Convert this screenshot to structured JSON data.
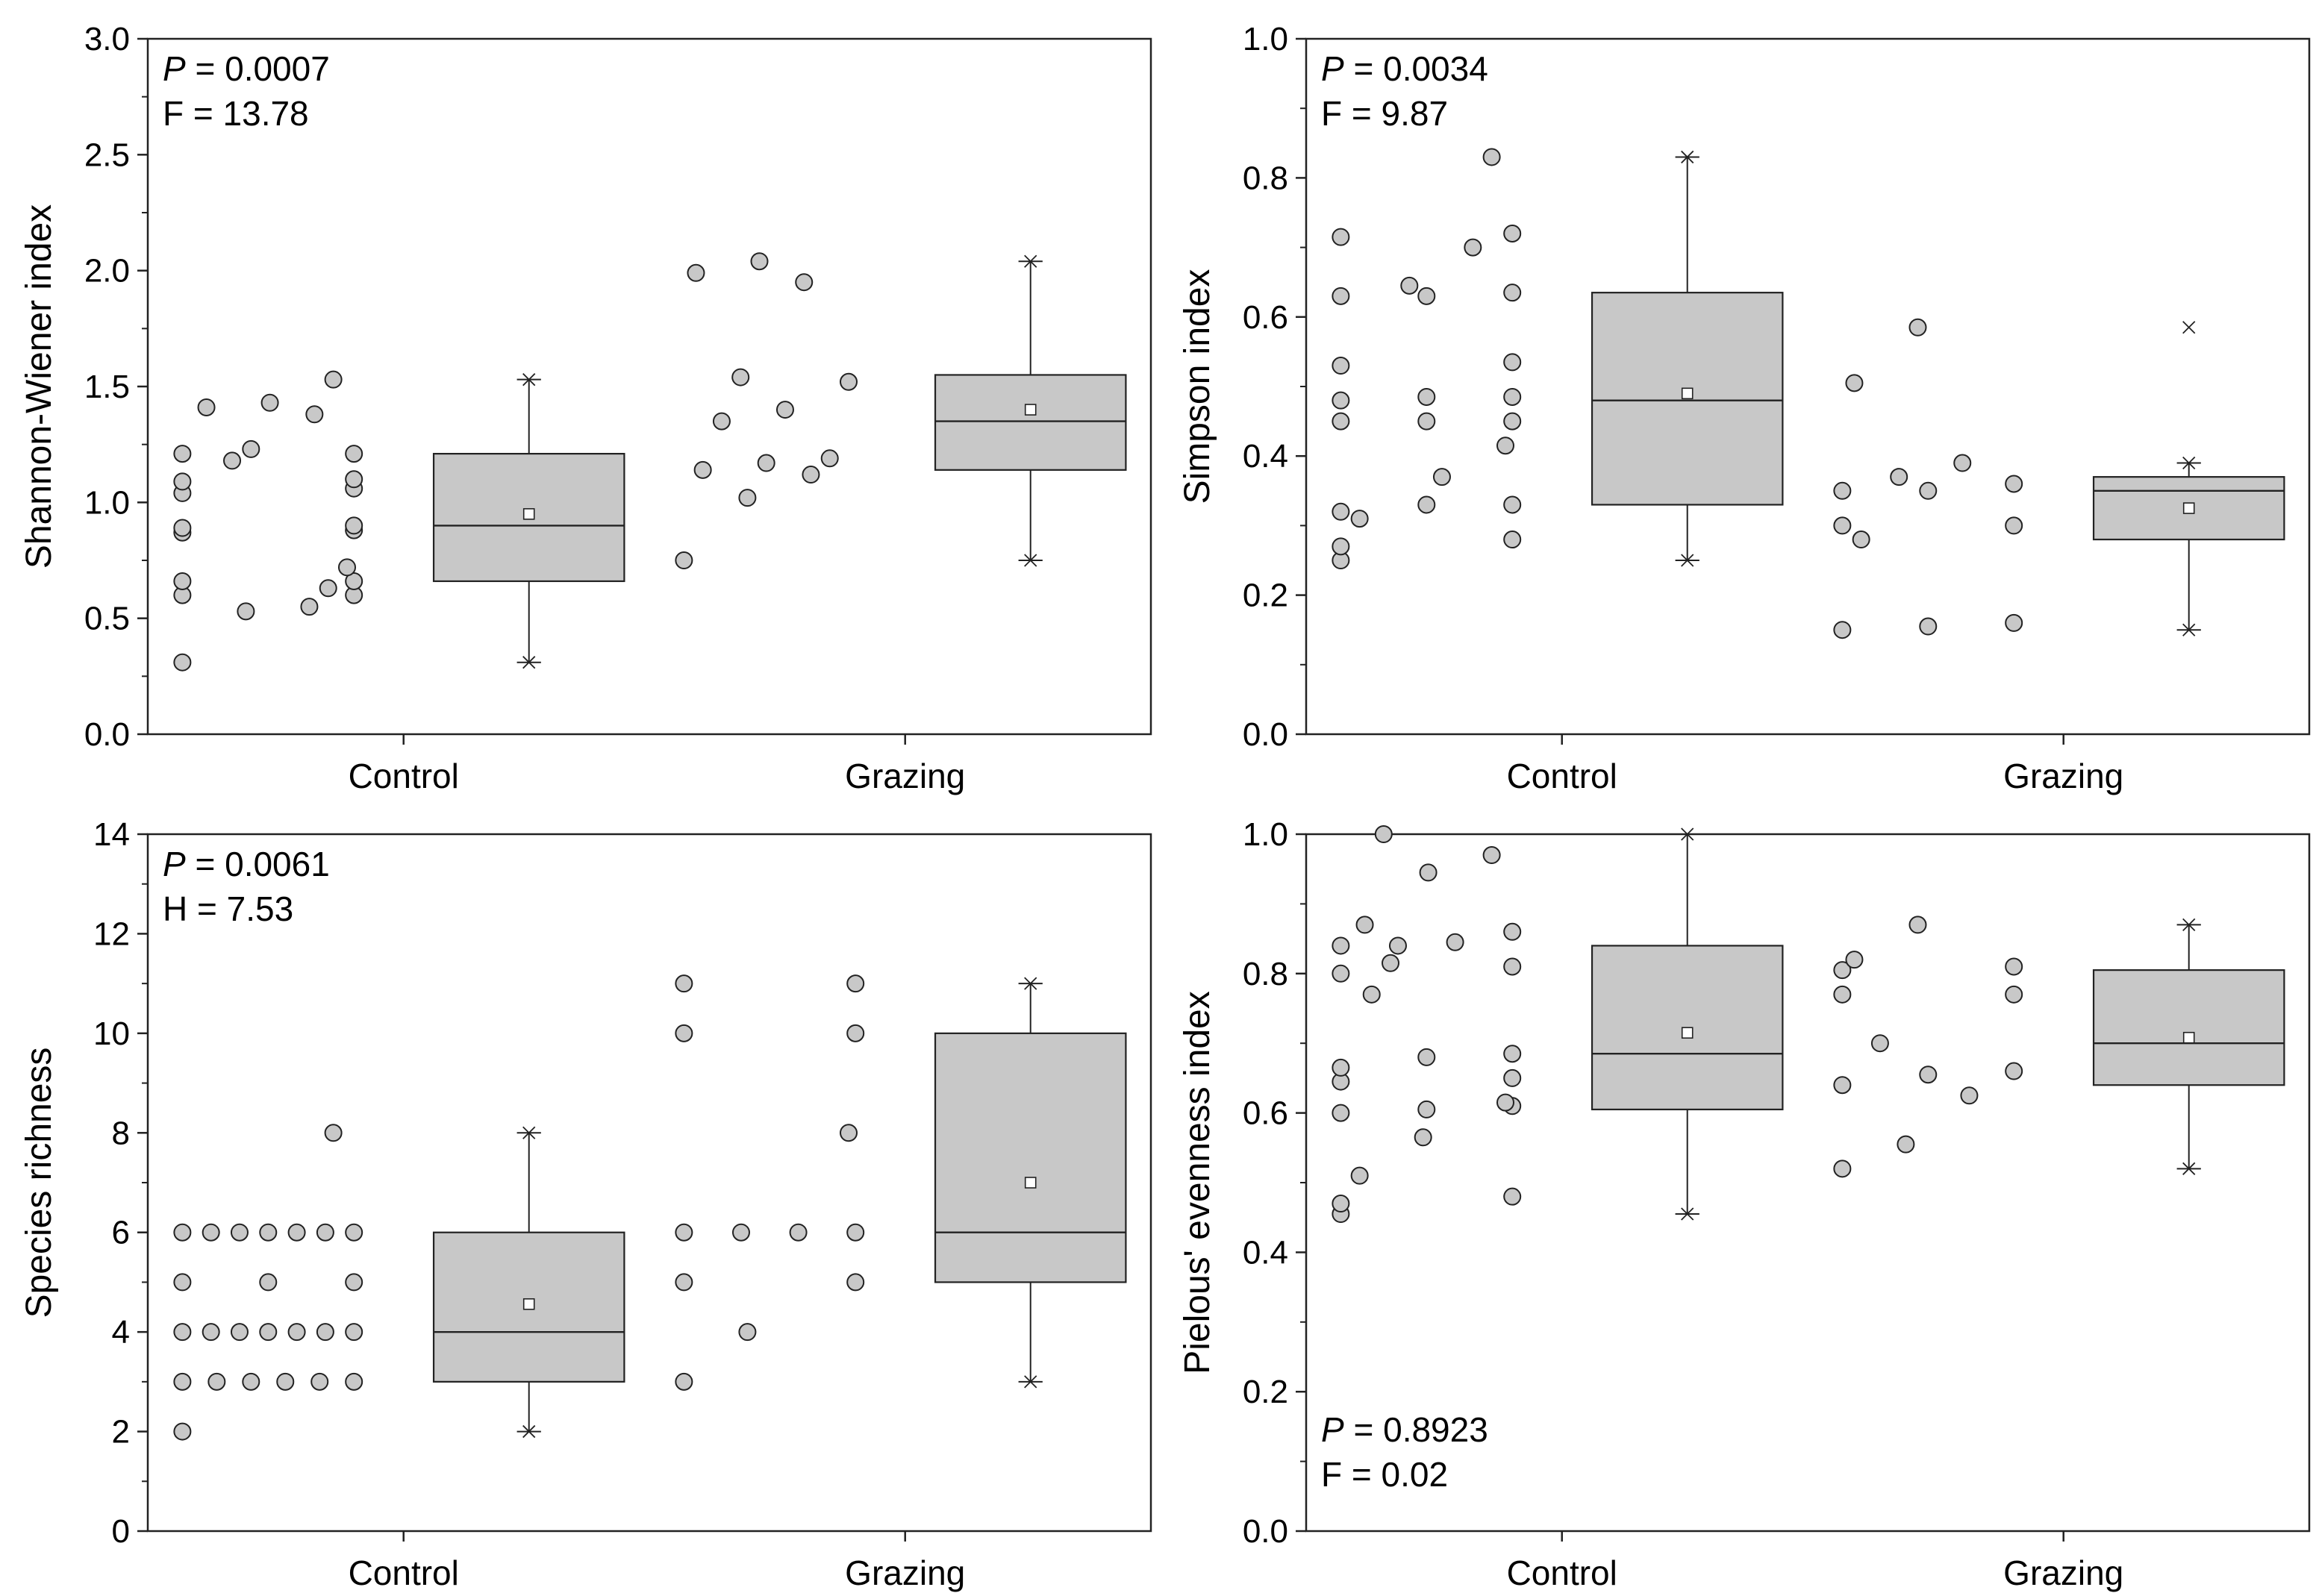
{
  "figure_type": "2x2 box plots with jittered raw data points",
  "colors": {
    "box_fill": "#c8c8c8",
    "point_fill": "#c8c8c8",
    "stroke": "#222222",
    "background": "#ffffff"
  },
  "chart_data": [
    {
      "type": "box",
      "ylabel": "Shannon-Wiener index",
      "ylim": [
        0,
        3.0
      ],
      "yticks": [
        "0.0",
        "0.5",
        "1.0",
        "1.5",
        "2.0",
        "2.5",
        "3.0"
      ],
      "categories": [
        "Control",
        "Grazing"
      ],
      "stats_text": {
        "p_label": "P",
        "p_value": " = 0.0007",
        "stat": "F = 13.78",
        "position": "top-left"
      },
      "series": [
        {
          "name": "Control",
          "box": {
            "whisker_low": 0.31,
            "q1": 0.66,
            "median": 0.9,
            "q3": 1.21,
            "whisker_high": 1.53,
            "mean": 0.95
          },
          "points": [
            0.31,
            0.53,
            0.55,
            0.6,
            0.6,
            0.63,
            0.66,
            0.66,
            0.72,
            0.87,
            0.88,
            0.89,
            0.9,
            1.04,
            1.06,
            1.09,
            1.1,
            1.18,
            1.21,
            1.21,
            1.23,
            1.38,
            1.41,
            1.43,
            1.53
          ]
        },
        {
          "name": "Grazing",
          "box": {
            "whisker_low": 0.75,
            "q1": 1.14,
            "median": 1.35,
            "q3": 1.55,
            "whisker_high": 2.04,
            "mean": 1.4
          },
          "points": [
            0.75,
            1.02,
            1.12,
            1.14,
            1.17,
            1.19,
            1.35,
            1.4,
            1.52,
            1.54,
            1.95,
            1.99,
            2.04
          ]
        }
      ]
    },
    {
      "type": "box",
      "ylabel": "Simpson index",
      "ylim": [
        0,
        1.0
      ],
      "yticks": [
        "0.0",
        "0.2",
        "0.4",
        "0.6",
        "0.8",
        "1.0"
      ],
      "categories": [
        "Control",
        "Grazing"
      ],
      "stats_text": {
        "p_label": "P",
        "p_value": " = 0.0034",
        "stat": "F = 9.87",
        "position": "top-left"
      },
      "series": [
        {
          "name": "Control",
          "box": {
            "whisker_low": 0.25,
            "q1": 0.33,
            "median": 0.48,
            "q3": 0.635,
            "whisker_high": 0.83,
            "mean": 0.49
          },
          "points": [
            0.25,
            0.27,
            0.28,
            0.31,
            0.32,
            0.33,
            0.33,
            0.37,
            0.415,
            0.45,
            0.45,
            0.45,
            0.48,
            0.485,
            0.485,
            0.53,
            0.535,
            0.63,
            0.63,
            0.635,
            0.645,
            0.7,
            0.715,
            0.72,
            0.83
          ]
        },
        {
          "name": "Grazing",
          "box": {
            "whisker_low": 0.15,
            "q1": 0.28,
            "median": 0.35,
            "q3": 0.37,
            "whisker_high": 0.39,
            "mean": 0.325,
            "outlier": 0.585
          },
          "points": [
            0.15,
            0.155,
            0.16,
            0.28,
            0.3,
            0.3,
            0.35,
            0.35,
            0.36,
            0.37,
            0.39,
            0.505,
            0.585
          ]
        }
      ]
    },
    {
      "type": "box",
      "ylabel": "Species richness",
      "ylim": [
        0,
        14
      ],
      "yticks": [
        "0",
        "2",
        "4",
        "6",
        "8",
        "10",
        "12",
        "14"
      ],
      "categories": [
        "Control",
        "Grazing"
      ],
      "stats_text": {
        "p_label": "P",
        "p_value": " = 0.0061",
        "stat": "H = 7.53",
        "position": "top-left"
      },
      "series": [
        {
          "name": "Control",
          "box": {
            "whisker_low": 2,
            "q1": 3,
            "median": 4,
            "q3": 6,
            "whisker_high": 8,
            "mean": 4.56
          },
          "points": [
            2,
            3,
            3,
            3,
            3,
            3,
            3,
            4,
            4,
            4,
            4,
            4,
            4,
            4,
            5,
            5,
            5,
            6,
            6,
            6,
            6,
            6,
            6,
            6,
            8
          ]
        },
        {
          "name": "Grazing",
          "box": {
            "whisker_low": 3,
            "q1": 5,
            "median": 6,
            "q3": 10,
            "whisker_high": 11,
            "mean": 7.0
          },
          "points": [
            3,
            4,
            5,
            5,
            6,
            6,
            6,
            6,
            8,
            10,
            10,
            11,
            11
          ]
        }
      ]
    },
    {
      "type": "box",
      "ylabel": "Pielous' evenness index",
      "ylim": [
        0,
        1.0
      ],
      "yticks": [
        "0.0",
        "0.2",
        "0.4",
        "0.6",
        "0.8",
        "1.0"
      ],
      "categories": [
        "Control",
        "Grazing"
      ],
      "stats_text": {
        "p_label": "P",
        "p_value": " = 0.8923",
        "stat": "F = 0.02",
        "position": "bottom-left"
      },
      "series": [
        {
          "name": "Control",
          "box": {
            "whisker_low": 0.455,
            "q1": 0.605,
            "median": 0.685,
            "q3": 0.84,
            "whisker_high": 1.0,
            "mean": 0.715
          },
          "points": [
            0.455,
            0.47,
            0.48,
            0.51,
            0.565,
            0.6,
            0.605,
            0.61,
            0.615,
            0.645,
            0.65,
            0.665,
            0.68,
            0.685,
            0.77,
            0.8,
            0.81,
            0.815,
            0.84,
            0.84,
            0.845,
            0.86,
            0.87,
            0.945,
            0.97,
            1.0
          ]
        },
        {
          "name": "Grazing",
          "box": {
            "whisker_low": 0.52,
            "q1": 0.64,
            "median": 0.7,
            "q3": 0.805,
            "whisker_high": 0.87,
            "mean": 0.708
          },
          "points": [
            0.52,
            0.555,
            0.625,
            0.64,
            0.655,
            0.66,
            0.7,
            0.77,
            0.77,
            0.805,
            0.81,
            0.82,
            0.87
          ]
        }
      ]
    }
  ]
}
